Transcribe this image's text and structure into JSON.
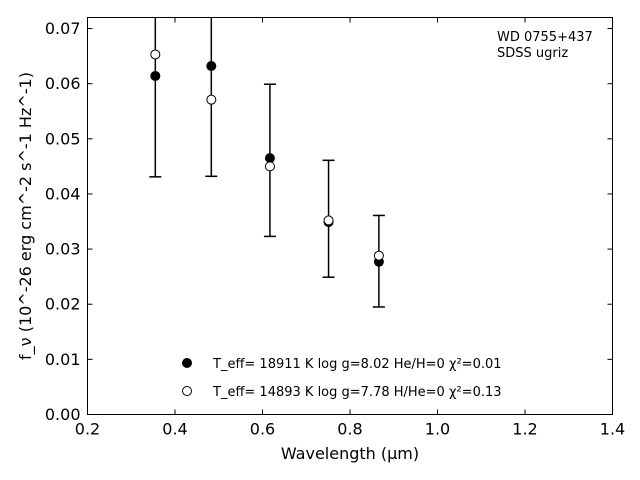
{
  "chart_data": {
    "type": "scatter",
    "title": "",
    "xlabel": "Wavelength (μm)",
    "ylabel": "f_ν (10^-26 erg cm^-2 s^-1 Hz^-1)",
    "xlim": [
      0.2,
      1.4
    ],
    "ylim": [
      0.0,
      0.072
    ],
    "x_ticks": [
      "0.2",
      "0.4",
      "0.6",
      "0.8",
      "1.0",
      "1.2",
      "1.4"
    ],
    "y_ticks": [
      "0.00",
      "0.01",
      "0.02",
      "0.03",
      "0.04",
      "0.05",
      "0.06",
      "0.07"
    ],
    "grid": false,
    "annotation": [
      "WD 0755+437",
      "SDSS ugriz"
    ],
    "legend_position": "lower-center",
    "observed_errors": {
      "x": [
        0.355,
        0.483,
        0.617,
        0.751,
        0.866
      ],
      "y": [
        0.0614,
        0.0632,
        0.0465,
        0.0349,
        0.0277
      ],
      "err_low": [
        0.0431,
        0.0432,
        0.0323,
        0.0249,
        0.0195
      ],
      "err_high": [
        0.072,
        0.072,
        0.0599,
        0.0461,
        0.0361
      ]
    },
    "series": [
      {
        "name": "T_eff= 18911 K  log g=8.02  He/H=0  χ²=0.01",
        "marker": "filled-circle",
        "color": "#000000",
        "x": [
          0.355,
          0.483,
          0.617,
          0.751,
          0.866
        ],
        "y": [
          0.0614,
          0.0632,
          0.0465,
          0.0349,
          0.0277
        ]
      },
      {
        "name": "T_eff= 14893 K  log g=7.78  H/He=0  χ²=0.13",
        "marker": "open-circle",
        "color": "#000000",
        "x": [
          0.355,
          0.483,
          0.617,
          0.751,
          0.866
        ],
        "y": [
          0.0653,
          0.0571,
          0.045,
          0.0352,
          0.0288
        ]
      }
    ]
  }
}
